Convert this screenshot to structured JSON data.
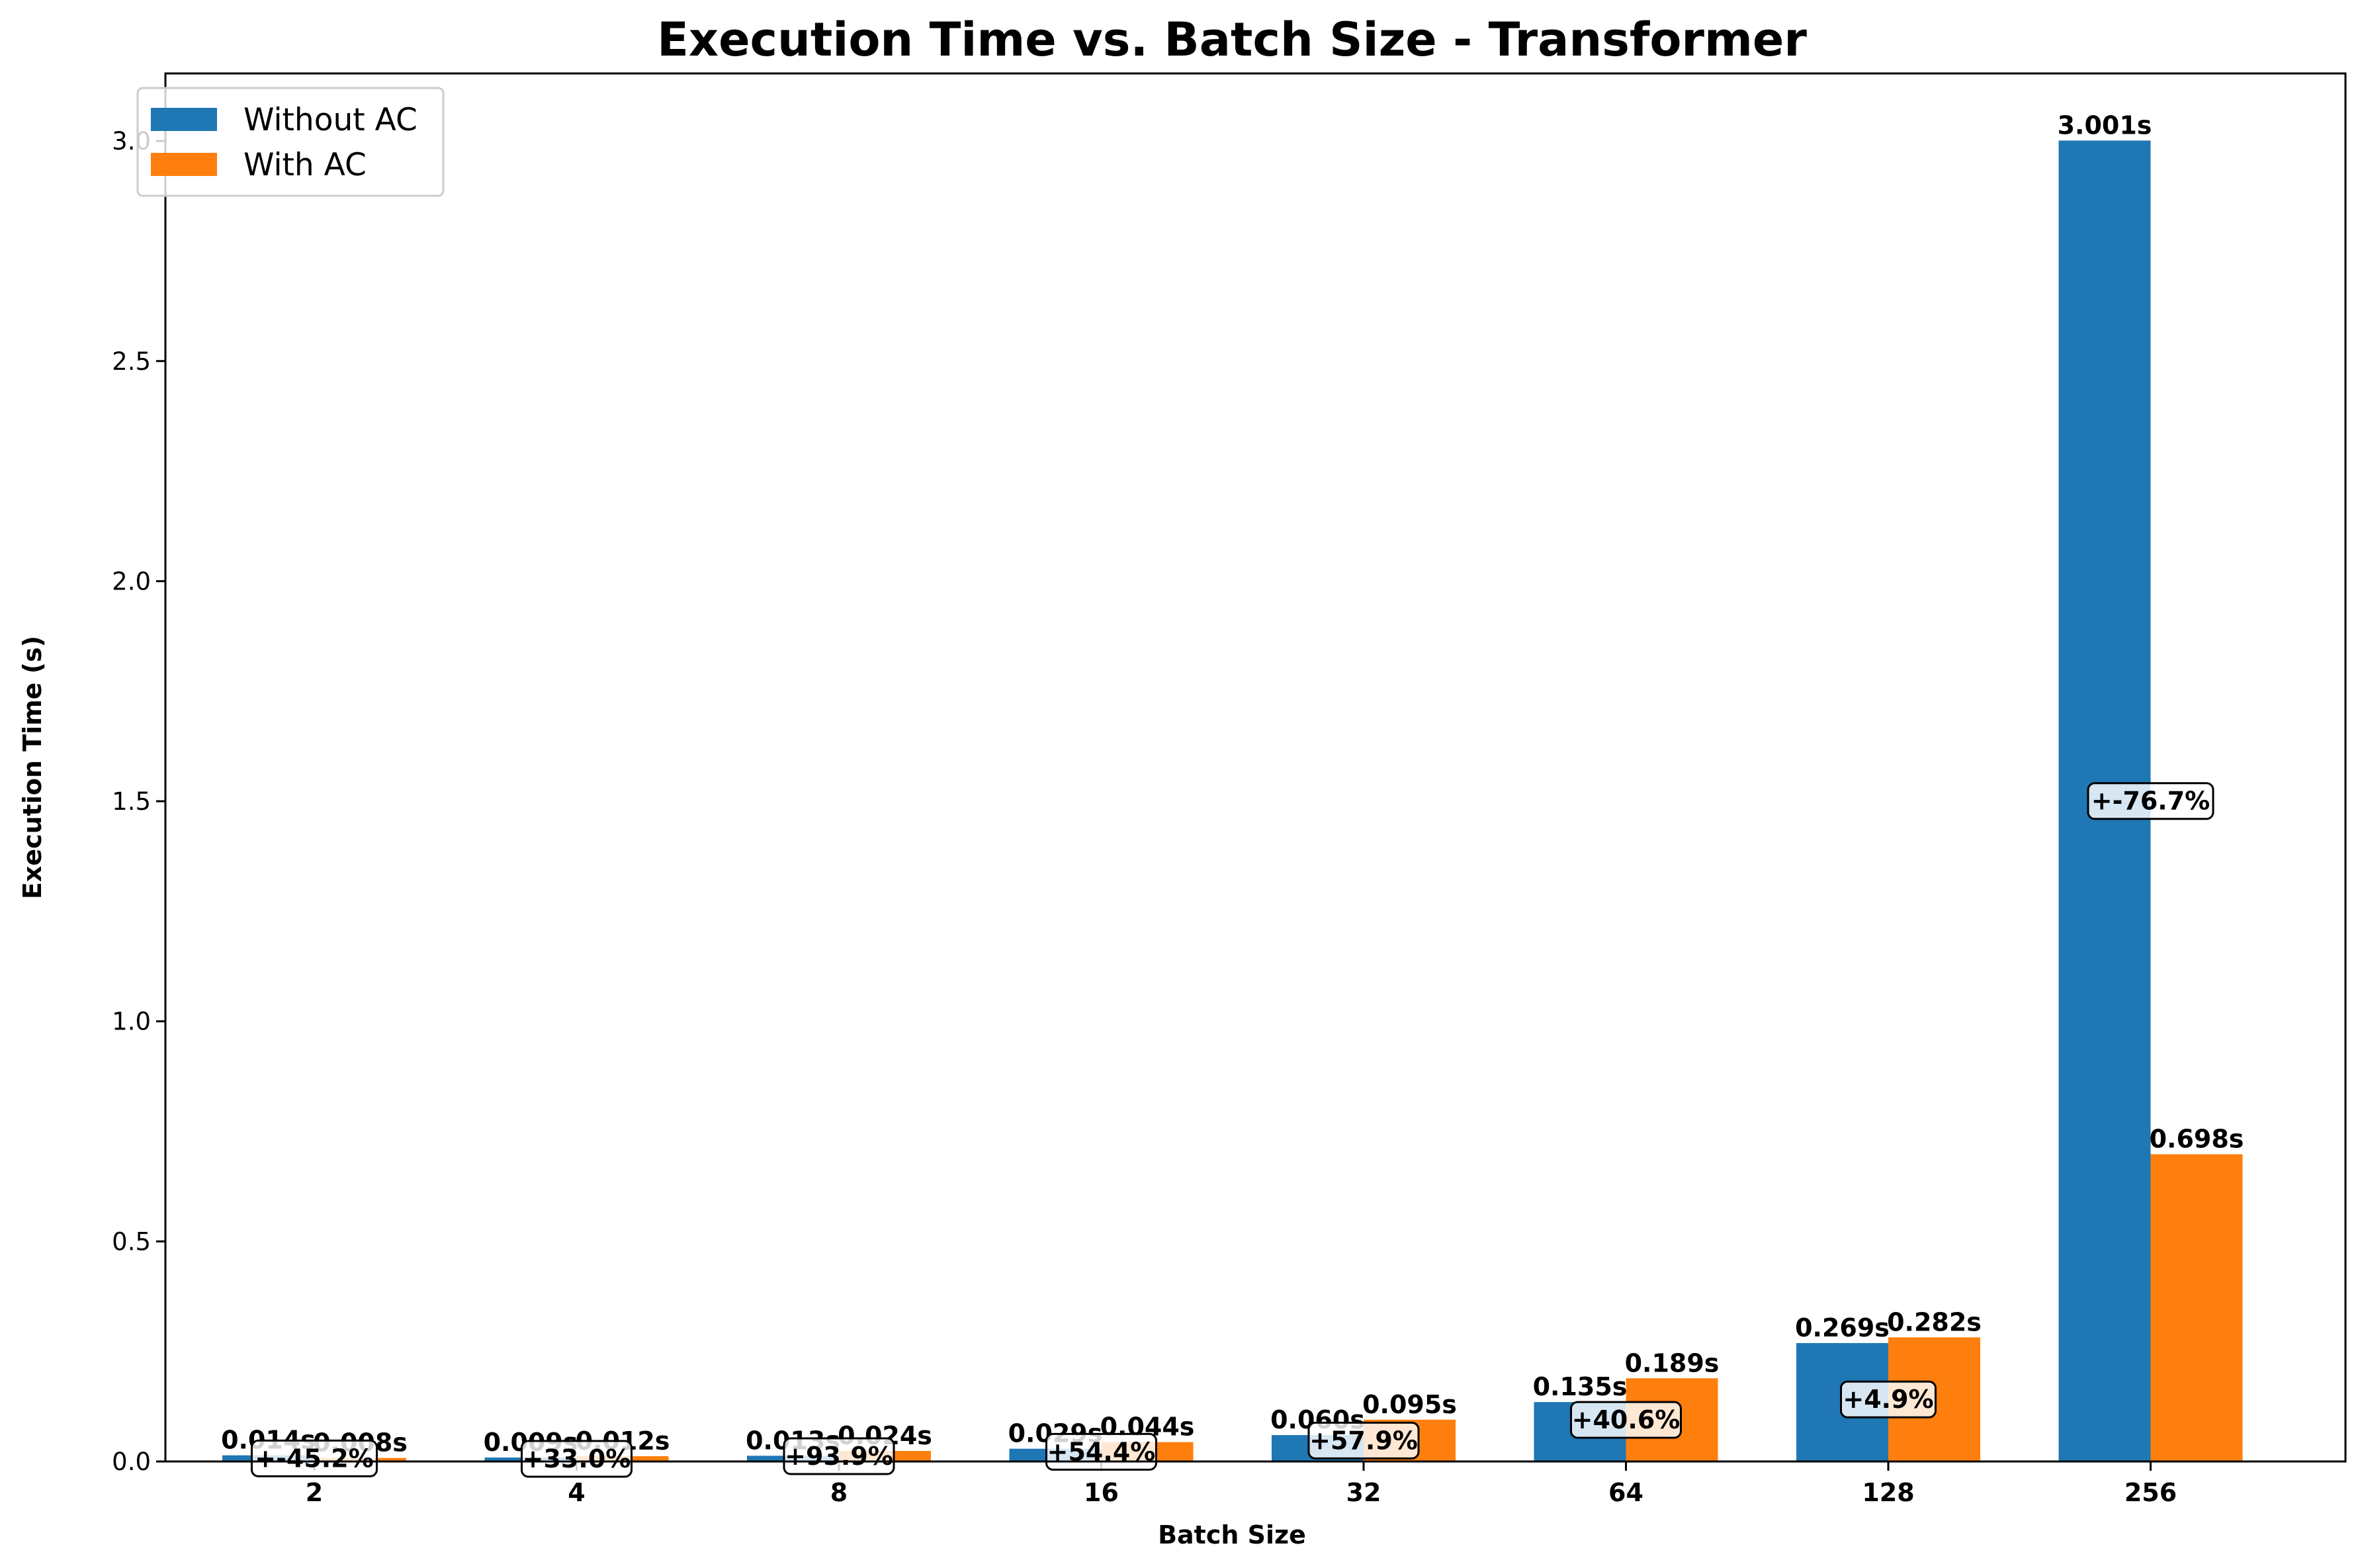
{
  "colors": {
    "without_ac": "#1f77b4",
    "with_ac": "#ff7f0e"
  },
  "chart_data": {
    "type": "bar",
    "title": "Execution Time vs. Batch Size - Transformer",
    "xlabel": "Batch Size",
    "ylabel": "Execution Time (s)",
    "categories": [
      "2",
      "4",
      "8",
      "16",
      "32",
      "64",
      "128",
      "256"
    ],
    "ylim": [
      0,
      3.15
    ],
    "yticks": [
      "0.0",
      "0.5",
      "1.0",
      "1.5",
      "2.0",
      "2.5",
      "3.0"
    ],
    "grid": false,
    "legend_position": "top-left",
    "series": [
      {
        "name": "Without AC",
        "values": [
          0.014,
          0.009,
          0.013,
          0.029,
          0.06,
          0.135,
          0.269,
          3.001
        ],
        "labels": [
          "0.014s",
          "0.009s",
          "0.013s",
          "0.029s",
          "0.060s",
          "0.135s",
          "0.269s",
          "3.001s"
        ]
      },
      {
        "name": "With AC",
        "values": [
          0.008,
          0.012,
          0.024,
          0.044,
          0.095,
          0.189,
          0.282,
          0.698
        ],
        "labels": [
          "0.008s",
          "0.012s",
          "0.024s",
          "0.044s",
          "0.095s",
          "0.189s",
          "0.282s",
          "0.698s"
        ]
      }
    ],
    "annotations": [
      "+-45.2%",
      "+33.0%",
      "+93.9%",
      "+54.4%",
      "+57.9%",
      "+40.6%",
      "+4.9%",
      "+-76.7%"
    ]
  }
}
